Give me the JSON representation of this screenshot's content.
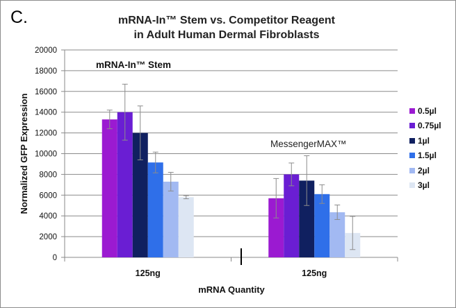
{
  "panel_label": "C.",
  "chart_data": {
    "type": "bar",
    "title_lines": [
      "mRNA-In™ Stem vs. Competitor Reagent",
      "in Adult Human Dermal Fibroblasts"
    ],
    "xlabel": "mRNA Quantity",
    "ylabel": "Normalized GFP Expression",
    "ylim": [
      0,
      20000
    ],
    "yticks": [
      0,
      2000,
      4000,
      6000,
      8000,
      10000,
      12000,
      14000,
      16000,
      18000,
      20000
    ],
    "grid": true,
    "legend_position": "right",
    "categories": [
      "125ng",
      "125ng"
    ],
    "group_annotations": [
      "mRNA-In™ Stem",
      "MessengerMAX™"
    ],
    "series": [
      {
        "name": "0.5µl",
        "color": "#9b1ad1",
        "values": [
          13300,
          5700
        ],
        "errors": [
          900,
          1900
        ]
      },
      {
        "name": "0.75µl",
        "color": "#6a1ed3",
        "values": [
          14000,
          8000
        ],
        "errors": [
          2700,
          1100
        ]
      },
      {
        "name": "1µl",
        "color": "#102060",
        "values": [
          12000,
          7400
        ],
        "errors": [
          2600,
          2400
        ]
      },
      {
        "name": "1.5µl",
        "color": "#2f6fe9",
        "values": [
          9150,
          6100
        ],
        "errors": [
          1000,
          900
        ]
      },
      {
        "name": "2µl",
        "color": "#a2b9f2",
        "values": [
          7300,
          4350
        ],
        "errors": [
          900,
          700
        ]
      },
      {
        "name": "3µl",
        "color": "#dde6f3",
        "values": [
          5800,
          2350
        ],
        "errors": [
          150,
          1600
        ]
      }
    ]
  }
}
